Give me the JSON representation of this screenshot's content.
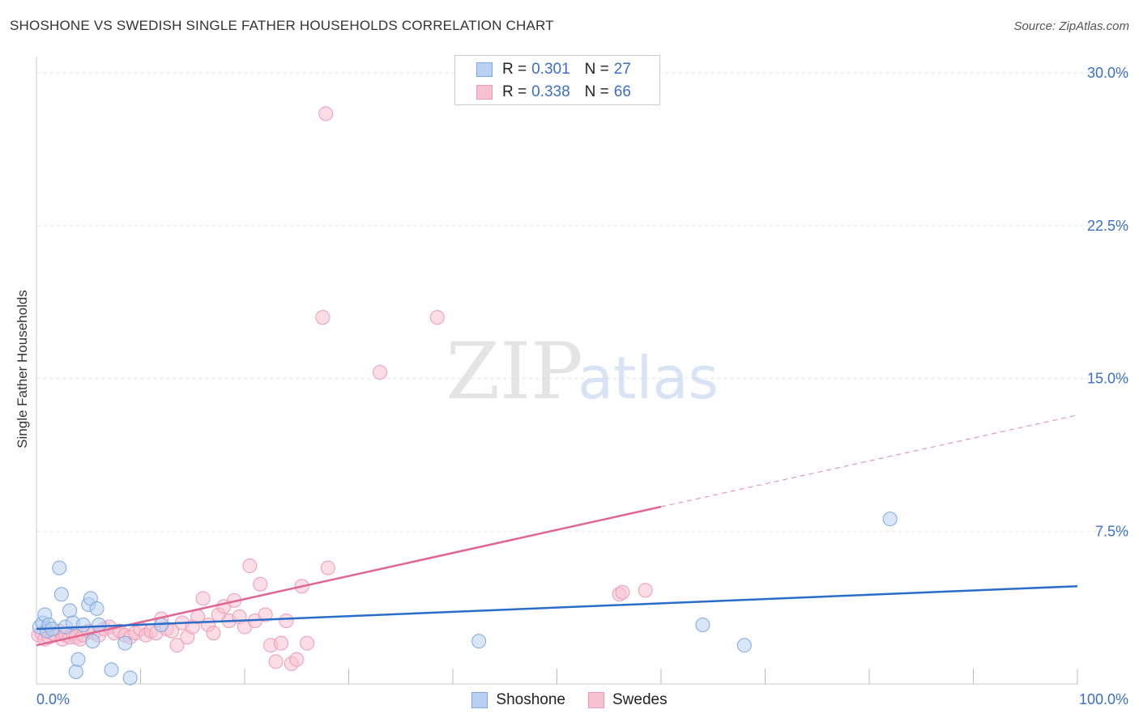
{
  "title": "SHOSHONE VS SWEDISH SINGLE FATHER HOUSEHOLDS CORRELATION CHART",
  "source": "Source: ZipAtlas.com",
  "watermark": {
    "zip": "ZIP",
    "atlas": "atlas"
  },
  "legend": {
    "r_label": "R =",
    "n_label": "N =",
    "rows": [
      {
        "name": "Shoshone",
        "r": "0.301",
        "n": "27"
      },
      {
        "name": "Swedes",
        "r": "0.338",
        "n": "66"
      }
    ]
  },
  "colors": {
    "shoshone_fill": "#b8d1f3",
    "shoshone_stroke": "#7fa8e0",
    "shoshone_line": "#2a6dc9",
    "swedes_fill": "#f8c1d2",
    "swedes_stroke": "#ee9ab5",
    "swedes_line": "#e0668f",
    "axis_label": "#3a6fc4",
    "grid": "#e3e3e3"
  },
  "chart_data": {
    "type": "scatter",
    "title": "SHOSHONE VS SWEDISH SINGLE FATHER HOUSEHOLDS CORRELATION CHART",
    "xlabel": "",
    "ylabel": "Single Father Households",
    "xlim": [
      0,
      100
    ],
    "ylim": [
      0,
      30.8
    ],
    "x_tick_labels": [
      "0.0%",
      "100.0%"
    ],
    "y_ticks": [
      7.5,
      15.0,
      22.5,
      30.0
    ],
    "y_tick_labels": [
      "7.5%",
      "15.0%",
      "22.5%",
      "30.0%"
    ],
    "grid": true,
    "series": [
      {
        "name": "Shoshone",
        "points": [
          [
            0.3,
            2.8
          ],
          [
            0.6,
            3.0
          ],
          [
            0.8,
            3.4
          ],
          [
            1.0,
            2.6
          ],
          [
            1.2,
            2.9
          ],
          [
            1.5,
            2.7
          ],
          [
            2.2,
            5.7
          ],
          [
            2.4,
            4.4
          ],
          [
            2.8,
            2.8
          ],
          [
            3.2,
            3.6
          ],
          [
            3.5,
            3.0
          ],
          [
            3.8,
            0.6
          ],
          [
            4.0,
            1.2
          ],
          [
            4.5,
            2.9
          ],
          [
            5.0,
            3.9
          ],
          [
            5.2,
            4.2
          ],
          [
            5.4,
            2.1
          ],
          [
            5.8,
            3.7
          ],
          [
            6.0,
            2.9
          ],
          [
            7.2,
            0.7
          ],
          [
            8.5,
            2.0
          ],
          [
            9.0,
            0.3
          ],
          [
            12.0,
            2.9
          ],
          [
            42.5,
            2.1
          ],
          [
            64.0,
            2.9
          ],
          [
            68.0,
            1.9
          ],
          [
            82.0,
            8.1
          ]
        ],
        "trend": {
          "x": [
            0,
            100
          ],
          "y": [
            2.7,
            4.8
          ]
        }
      },
      {
        "name": "Swedes",
        "points": [
          [
            0.2,
            2.4
          ],
          [
            0.5,
            2.5
          ],
          [
            0.8,
            2.2
          ],
          [
            1.0,
            2.7
          ],
          [
            1.2,
            2.3
          ],
          [
            1.5,
            2.5
          ],
          [
            1.8,
            2.4
          ],
          [
            2.2,
            2.6
          ],
          [
            2.5,
            2.2
          ],
          [
            2.8,
            2.4
          ],
          [
            3.2,
            2.3
          ],
          [
            3.5,
            2.5
          ],
          [
            3.8,
            2.3
          ],
          [
            4.2,
            2.2
          ],
          [
            4.5,
            2.4
          ],
          [
            5.0,
            2.6
          ],
          [
            5.5,
            2.5
          ],
          [
            6.0,
            2.4
          ],
          [
            6.5,
            2.7
          ],
          [
            7.0,
            2.8
          ],
          [
            7.5,
            2.5
          ],
          [
            8.0,
            2.6
          ],
          [
            8.5,
            2.4
          ],
          [
            9.0,
            2.3
          ],
          [
            9.5,
            2.5
          ],
          [
            10.0,
            2.7
          ],
          [
            10.5,
            2.4
          ],
          [
            11.0,
            2.6
          ],
          [
            11.5,
            2.5
          ],
          [
            12.0,
            3.2
          ],
          [
            12.5,
            2.7
          ],
          [
            13.0,
            2.6
          ],
          [
            13.5,
            1.9
          ],
          [
            14.0,
            3.0
          ],
          [
            14.5,
            2.3
          ],
          [
            15.0,
            2.8
          ],
          [
            15.5,
            3.3
          ],
          [
            16.0,
            4.2
          ],
          [
            16.5,
            2.9
          ],
          [
            17.0,
            2.5
          ],
          [
            17.5,
            3.4
          ],
          [
            18.0,
            3.8
          ],
          [
            18.5,
            3.1
          ],
          [
            19.0,
            4.1
          ],
          [
            19.5,
            3.3
          ],
          [
            20.0,
            2.8
          ],
          [
            20.5,
            5.8
          ],
          [
            21.0,
            3.1
          ],
          [
            21.5,
            4.9
          ],
          [
            22.0,
            3.4
          ],
          [
            22.5,
            1.9
          ],
          [
            23.0,
            1.1
          ],
          [
            23.5,
            2.0
          ],
          [
            24.0,
            3.1
          ],
          [
            24.5,
            1.0
          ],
          [
            25.0,
            1.2
          ],
          [
            25.5,
            4.8
          ],
          [
            26.0,
            2.0
          ],
          [
            27.5,
            18.0
          ],
          [
            27.8,
            28.0
          ],
          [
            28.0,
            5.7
          ],
          [
            33.0,
            15.3
          ],
          [
            38.5,
            18.0
          ],
          [
            56.0,
            4.4
          ],
          [
            56.3,
            4.5
          ],
          [
            58.5,
            4.6
          ]
        ],
        "trend": {
          "x": [
            0,
            60
          ],
          "y": [
            1.9,
            8.7
          ]
        },
        "trend_projection": {
          "x": [
            60,
            100
          ],
          "y": [
            8.7,
            13.2
          ]
        }
      }
    ]
  }
}
